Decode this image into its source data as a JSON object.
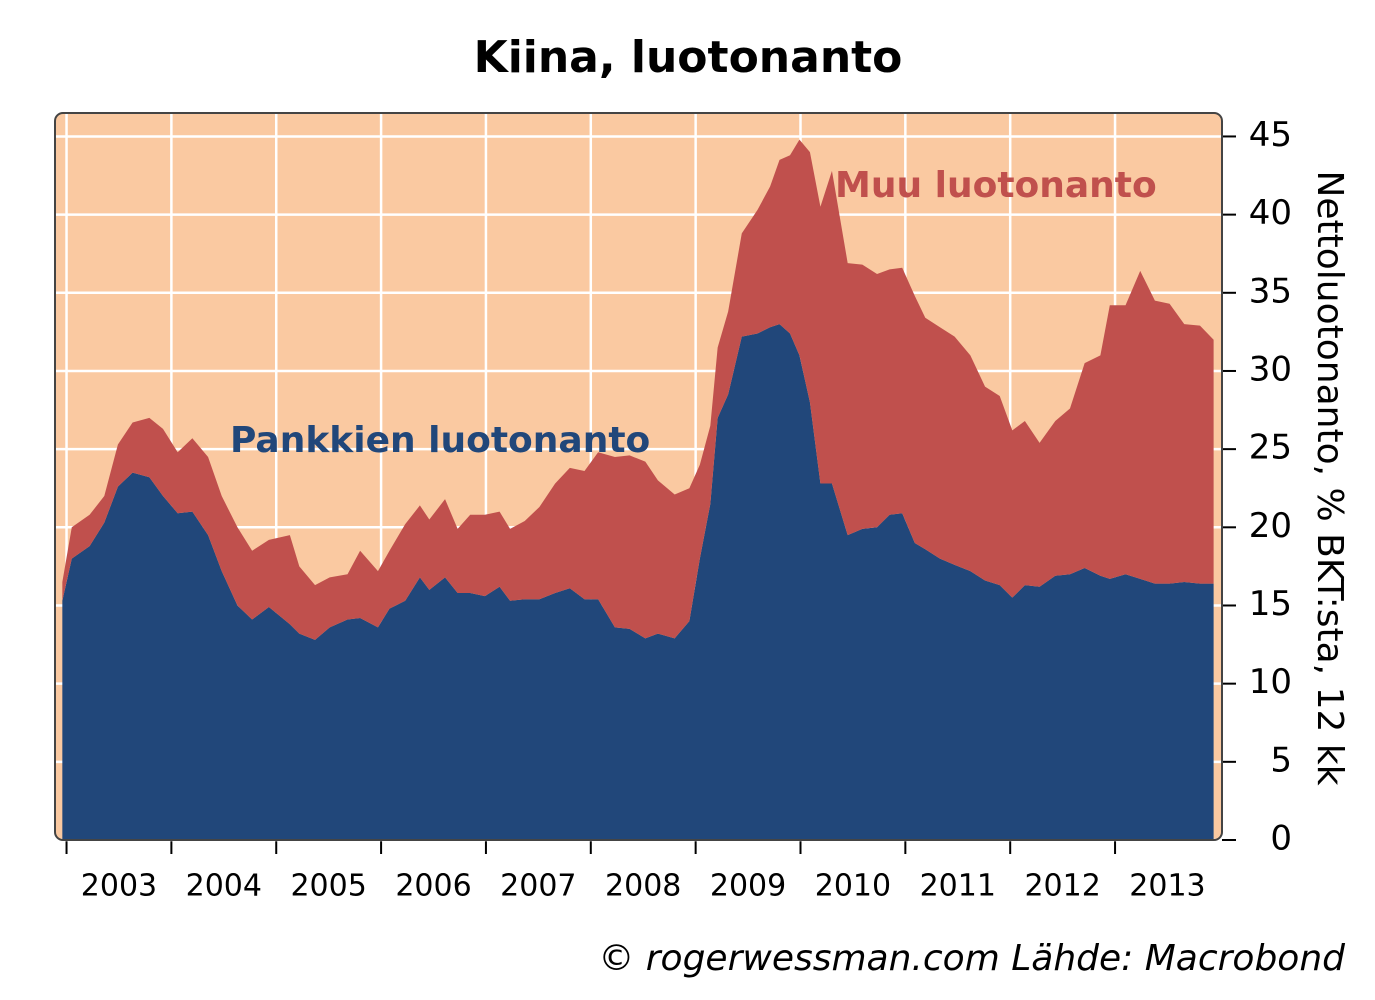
{
  "chart_data": {
    "type": "stacked_area",
    "title": "Kiina, luotonanto",
    "y_label": "Nettoluotonanto, % BKT:sta, 12 kk",
    "source": "© rogerwessman.com Lähde: Macrobond",
    "x": [
      2002.96,
      2003.05,
      2003.22,
      2003.36,
      2003.49,
      2003.63,
      2003.79,
      2003.92,
      2004.06,
      2004.2,
      2004.35,
      2004.48,
      2004.63,
      2004.77,
      2004.93,
      2005.13,
      2005.22,
      2005.37,
      2005.51,
      2005.68,
      2005.8,
      2005.97,
      2006.08,
      2006.23,
      2006.37,
      2006.46,
      2006.61,
      2006.73,
      2006.85,
      2006.99,
      2007.13,
      2007.23,
      2007.37,
      2007.51,
      2007.66,
      2007.8,
      2007.94,
      2008.07,
      2008.23,
      2008.37,
      2008.52,
      2008.64,
      2008.8,
      2008.94,
      2009.04,
      2009.14,
      2009.21,
      2009.31,
      2009.44,
      2009.59,
      2009.71,
      2009.8,
      2009.9,
      2009.99,
      2010.09,
      2010.19,
      2010.3,
      2010.45,
      2010.59,
      2010.73,
      2010.85,
      2010.97,
      2011.09,
      2011.19,
      2011.33,
      2011.47,
      2011.62,
      2011.76,
      2011.9,
      2012.02,
      2012.14,
      2012.28,
      2012.43,
      2012.57,
      2012.71,
      2012.86,
      2012.95,
      2013.1,
      2013.24,
      2013.38,
      2013.52,
      2013.66,
      2013.81,
      2013.94
    ],
    "series": [
      {
        "name": "Pankkien luotonanto",
        "color": "#21477a",
        "values": [
          15.3,
          18,
          18.8,
          20.3,
          22.6,
          23.5,
          23.2,
          22,
          20.9,
          21,
          19.5,
          17.2,
          15,
          14.1,
          14.9,
          13.8,
          13.2,
          12.8,
          13.6,
          14.1,
          14.2,
          13.6,
          14.8,
          15.3,
          16.8,
          16,
          16.8,
          15.8,
          15.8,
          15.6,
          16.2,
          15.3,
          15.4,
          15.4,
          15.8,
          16.1,
          15.4,
          15.4,
          13.6,
          13.5,
          12.9,
          13.2,
          12.9,
          14,
          18,
          21.5,
          27,
          28.5,
          32.2,
          32.4,
          32.8,
          33,
          32.4,
          31,
          28,
          22.8,
          22.8,
          19.5,
          19.9,
          20,
          20.8,
          20.9,
          19,
          18.6,
          18,
          17.6,
          17.2,
          16.6,
          16.3,
          15.5,
          16.3,
          16.2,
          16.9,
          17,
          17.4,
          16.9,
          16.7,
          17,
          16.7,
          16.4,
          16.4,
          16.5,
          16.4,
          16.4
        ]
      },
      {
        "name": "Muu luotonanto",
        "color": "#c0504d",
        "values": [
          1.2,
          2,
          2,
          1.7,
          2.7,
          3.2,
          3.8,
          4.3,
          3.9,
          4.7,
          5,
          4.8,
          5,
          4.4,
          4.3,
          5.7,
          4.3,
          3.5,
          3.2,
          2.9,
          4.3,
          3.6,
          3.7,
          4.9,
          4.6,
          4.5,
          5,
          4.1,
          5,
          5.2,
          4.8,
          4.6,
          5,
          5.9,
          7,
          7.7,
          8.2,
          9.4,
          10.9,
          11.1,
          11.3,
          9.8,
          9.2,
          8.5,
          6,
          5,
          4.5,
          5.3,
          6.6,
          7.9,
          9,
          10.5,
          11.4,
          13.8,
          16,
          17.7,
          20,
          17.4,
          16.9,
          16.2,
          15.7,
          15.7,
          15.8,
          14.8,
          14.8,
          14.6,
          13.8,
          12.4,
          12.1,
          10.7,
          10.5,
          9.2,
          9.9,
          10.6,
          13.1,
          14.1,
          17.5,
          17.2,
          19.7,
          18.1,
          17.9,
          16.5,
          16.5,
          15.6
        ]
      }
    ],
    "xlim": [
      2002.89,
      2014.02
    ],
    "xticks": [
      2003,
      2004,
      2005,
      2006,
      2007,
      2008,
      2009,
      2010,
      2011,
      2012,
      2013
    ],
    "ylim": [
      0,
      46.5
    ],
    "yticks": [
      0,
      5,
      10,
      15,
      20,
      25,
      30,
      35,
      40,
      45
    ],
    "grid": true,
    "background": "#fac9a1"
  }
}
